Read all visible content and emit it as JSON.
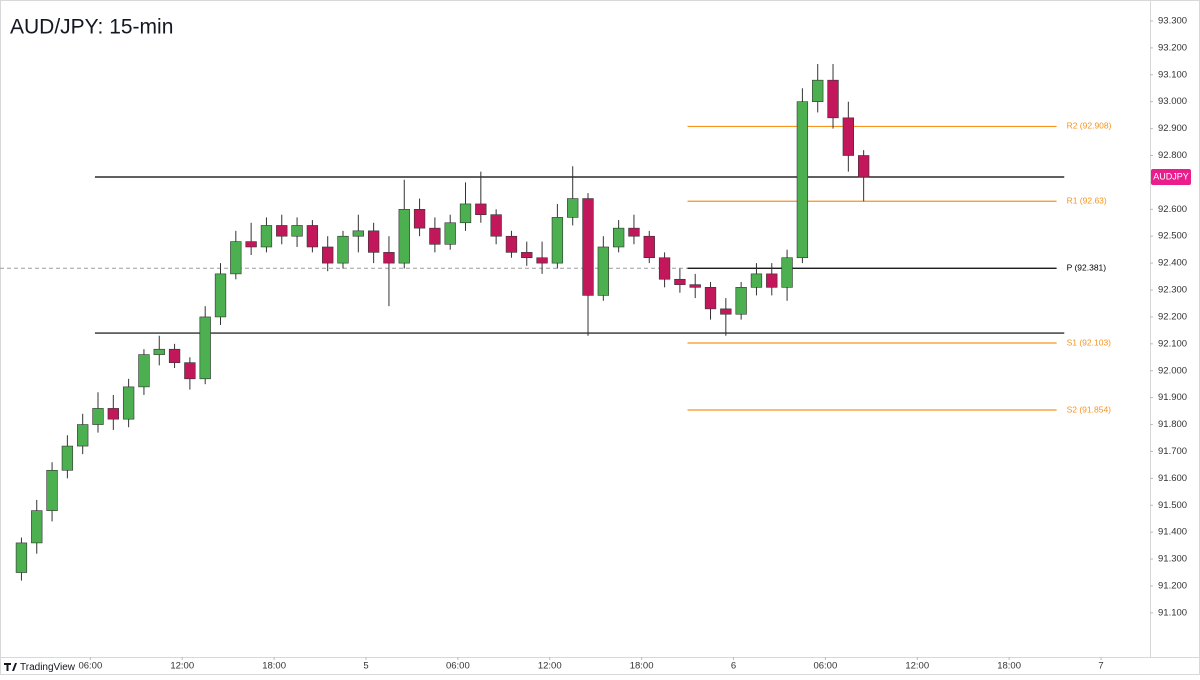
{
  "chart_data": {
    "type": "candlestick",
    "title": "AUD/JPY: 15-min",
    "x": [
      -22.5,
      -21.5,
      -20.5,
      -19.5,
      -18.5,
      -17.5,
      -16.5,
      -15.5,
      -14.5,
      -13.5,
      -12.5,
      -11.5,
      -10.5,
      -9.5,
      -8.5,
      -7.5,
      -6.5,
      -5.5,
      -4.5,
      -3.5,
      -2.5,
      -1.5,
      -0.5,
      0.5,
      1.5,
      2.5,
      3.5,
      4.5,
      5.5,
      6.5,
      7.5,
      8.5,
      9.5,
      10.5,
      11.5,
      12.5,
      13.5,
      14.5,
      15.5,
      16.5,
      17.5,
      18.5,
      19.5,
      20.5,
      21.5,
      22.5,
      23.5,
      24.5,
      25.5,
      26.5,
      27.5,
      28.5,
      29.5,
      30.5,
      31.5,
      32.5
    ],
    "open": [
      91.25,
      91.36,
      91.48,
      91.63,
      91.72,
      91.8,
      91.86,
      91.82,
      91.94,
      92.06,
      92.08,
      92.03,
      91.97,
      92.2,
      92.36,
      92.48,
      92.46,
      92.54,
      92.5,
      92.54,
      92.46,
      92.4,
      92.5,
      92.52,
      92.44,
      92.4,
      92.6,
      92.53,
      92.47,
      92.55,
      92.62,
      92.58,
      92.5,
      92.44,
      92.42,
      92.4,
      92.57,
      92.64,
      92.28,
      92.46,
      92.53,
      92.5,
      92.42,
      92.34,
      92.32,
      92.31,
      92.23,
      92.21,
      92.31,
      92.36,
      92.31,
      92.42,
      93.0,
      93.08,
      92.94,
      92.8
    ],
    "high": [
      91.38,
      91.52,
      91.66,
      91.76,
      91.84,
      91.92,
      91.91,
      91.97,
      92.08,
      92.13,
      92.1,
      92.05,
      92.24,
      92.4,
      92.52,
      92.55,
      92.57,
      92.58,
      92.57,
      92.56,
      92.5,
      92.52,
      92.58,
      92.55,
      92.5,
      92.71,
      92.64,
      92.57,
      92.58,
      92.7,
      92.74,
      92.6,
      92.52,
      92.48,
      92.48,
      92.62,
      92.76,
      92.66,
      92.5,
      92.56,
      92.58,
      92.52,
      92.44,
      92.38,
      92.36,
      92.33,
      92.27,
      92.33,
      92.4,
      92.4,
      92.45,
      93.05,
      93.14,
      93.14,
      93.0,
      92.82
    ],
    "low": [
      91.22,
      91.32,
      91.44,
      91.6,
      91.69,
      91.77,
      91.78,
      91.79,
      91.91,
      92.02,
      92.01,
      91.93,
      91.95,
      92.17,
      92.34,
      92.43,
      92.44,
      92.47,
      92.46,
      92.44,
      92.37,
      92.38,
      92.44,
      92.4,
      92.24,
      92.38,
      92.5,
      92.44,
      92.45,
      92.52,
      92.55,
      92.47,
      92.42,
      92.39,
      92.36,
      92.38,
      92.54,
      92.13,
      92.26,
      92.44,
      92.47,
      92.4,
      92.31,
      92.29,
      92.27,
      92.19,
      92.13,
      92.19,
      92.28,
      92.28,
      92.26,
      92.4,
      92.96,
      92.9,
      92.74,
      92.63
    ],
    "close": [
      91.36,
      91.48,
      91.63,
      91.72,
      91.8,
      91.86,
      91.82,
      91.94,
      92.06,
      92.08,
      92.03,
      91.97,
      92.2,
      92.36,
      92.48,
      92.46,
      92.54,
      92.5,
      92.54,
      92.46,
      92.4,
      92.5,
      92.52,
      92.44,
      92.4,
      92.6,
      92.53,
      92.47,
      92.55,
      92.62,
      92.58,
      92.5,
      92.44,
      92.42,
      92.4,
      92.57,
      92.64,
      92.28,
      92.46,
      92.53,
      92.5,
      92.42,
      92.34,
      92.32,
      92.31,
      92.23,
      92.21,
      92.31,
      92.36,
      92.31,
      92.42,
      93.0,
      93.08,
      92.94,
      92.8,
      92.72
    ],
    "up_color": "#4caf50",
    "down_color": "#c2185b",
    "wick_color": "#333333",
    "xlim": [
      -23.9,
      51.2
    ],
    "xticks": [
      {
        "value": -18,
        "label": "06:00"
      },
      {
        "value": -12,
        "label": "12:00"
      },
      {
        "value": -6,
        "label": "18:00"
      },
      {
        "value": 0,
        "label": "5"
      },
      {
        "value": 6,
        "label": "06:00"
      },
      {
        "value": 12,
        "label": "12:00"
      },
      {
        "value": 18,
        "label": "18:00"
      },
      {
        "value": 24,
        "label": "6"
      },
      {
        "value": 30,
        "label": "06:00"
      },
      {
        "value": 36,
        "label": "12:00"
      },
      {
        "value": 42,
        "label": "18:00"
      },
      {
        "value": 48,
        "label": "7"
      }
    ],
    "ylim": [
      90.936,
      93.378
    ],
    "yticks": [
      {
        "value": 93.3,
        "label": "93.300"
      },
      {
        "value": 93.2,
        "label": "93.200"
      },
      {
        "value": 93.1,
        "label": "93.100"
      },
      {
        "value": 93.0,
        "label": "93.000"
      },
      {
        "value": 92.9,
        "label": "92.900"
      },
      {
        "value": 92.8,
        "label": "92.800"
      },
      {
        "value": 92.7,
        "label": "92.700"
      },
      {
        "value": 92.6,
        "label": "92.600"
      },
      {
        "value": 92.5,
        "label": "92.500"
      },
      {
        "value": 92.4,
        "label": "92.400"
      },
      {
        "value": 92.3,
        "label": "92.300"
      },
      {
        "value": 92.2,
        "label": "92.200"
      },
      {
        "value": 92.1,
        "label": "92.100"
      },
      {
        "value": 92.0,
        "label": "92.000"
      },
      {
        "value": 91.9,
        "label": "91.900"
      },
      {
        "value": 91.8,
        "label": "91.800"
      },
      {
        "value": 91.7,
        "label": "91.700"
      },
      {
        "value": 91.6,
        "label": "91.600"
      },
      {
        "value": 91.5,
        "label": "91.500"
      },
      {
        "value": 91.4,
        "label": "91.400"
      },
      {
        "value": 91.3,
        "label": "91.300"
      },
      {
        "value": 91.2,
        "label": "91.200"
      },
      {
        "value": 91.1,
        "label": "91.100"
      }
    ],
    "lines": [
      {
        "value": 92.72,
        "from": -17.7,
        "to": 45.6,
        "color": "#000000",
        "style": "solid"
      },
      {
        "value": 92.14,
        "from": -17.7,
        "to": 45.6,
        "color": "#000000",
        "style": "solid"
      },
      {
        "value": 92.381,
        "from": -23.9,
        "to": 21,
        "color": "#9e9e9e",
        "style": "dashed"
      },
      {
        "value": 92.908,
        "from": 21,
        "to": 45.1,
        "color": "#f7931e",
        "style": "solid",
        "label": "R2 (92.908)"
      },
      {
        "value": 92.63,
        "from": 21,
        "to": 45.1,
        "color": "#f7931e",
        "style": "solid",
        "label": "R1 (92.63)"
      },
      {
        "value": 92.381,
        "from": 21,
        "to": 45.1,
        "color": "#000000",
        "style": "solid",
        "label": "P (92.381)"
      },
      {
        "value": 92.103,
        "from": 21,
        "to": 45.1,
        "color": "#f7931e",
        "style": "solid",
        "label": "S1 (92.103)"
      },
      {
        "value": 91.854,
        "from": 21,
        "to": 45.1,
        "color": "#f7931e",
        "style": "solid",
        "label": "S2 (91.854)"
      }
    ],
    "price_label": "AUDJPY",
    "price_label_color": "#e91e8c",
    "watermark": "TradingView"
  }
}
